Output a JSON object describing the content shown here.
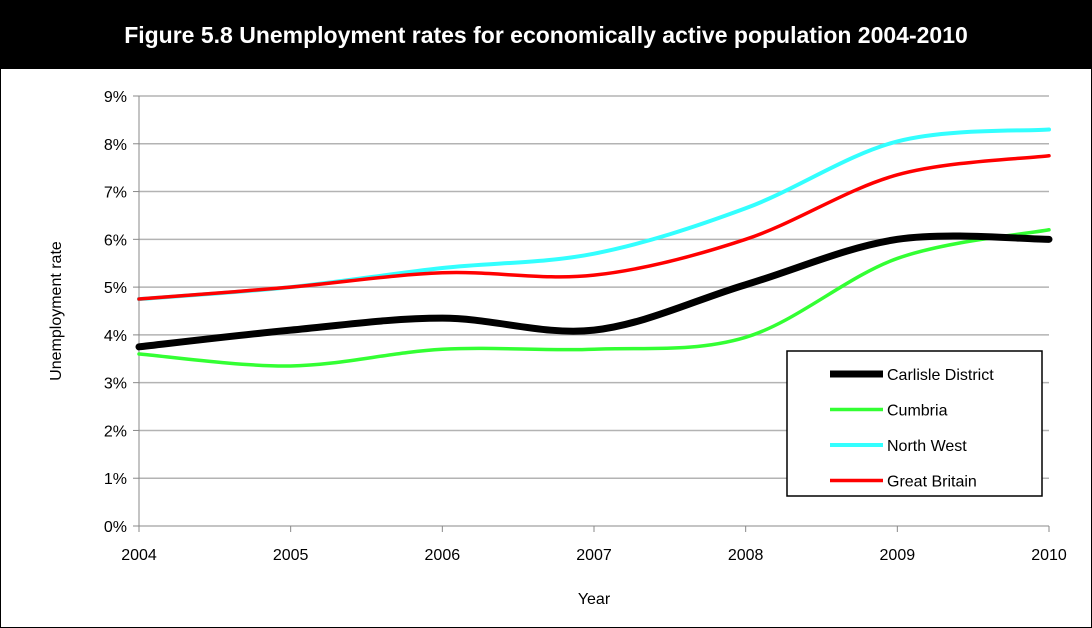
{
  "title": "Figure 5.8 Unemployment rates for economically active population 2004-2010",
  "chart_data": {
    "type": "line",
    "x": [
      "2004",
      "2005",
      "2006",
      "2007",
      "2008",
      "2009",
      "2010"
    ],
    "xlabel": "Year",
    "ylabel": "Unemployment rate",
    "ylim": [
      0,
      9
    ],
    "yticks": [
      "0%",
      "1%",
      "2%",
      "3%",
      "4%",
      "5%",
      "6%",
      "7%",
      "8%",
      "9%"
    ],
    "grid": true,
    "legend_position": "bottom-right",
    "series": [
      {
        "name": "Carlisle District",
        "color": "#000000",
        "width": 7,
        "values": [
          3.75,
          4.1,
          4.35,
          4.1,
          5.05,
          6.0,
          6.0
        ]
      },
      {
        "name": "Cumbria",
        "color": "#33ff33",
        "width": 3.5,
        "values": [
          3.6,
          3.35,
          3.7,
          3.7,
          3.95,
          5.6,
          6.2
        ]
      },
      {
        "name": "North West",
        "color": "#33ffff",
        "width": 4,
        "values": [
          4.75,
          5.0,
          5.4,
          5.7,
          6.65,
          8.05,
          8.3
        ]
      },
      {
        "name": "Great Britain",
        "color": "#ff0000",
        "width": 3.5,
        "values": [
          4.75,
          5.0,
          5.3,
          5.25,
          6.0,
          7.35,
          7.75
        ]
      }
    ]
  }
}
